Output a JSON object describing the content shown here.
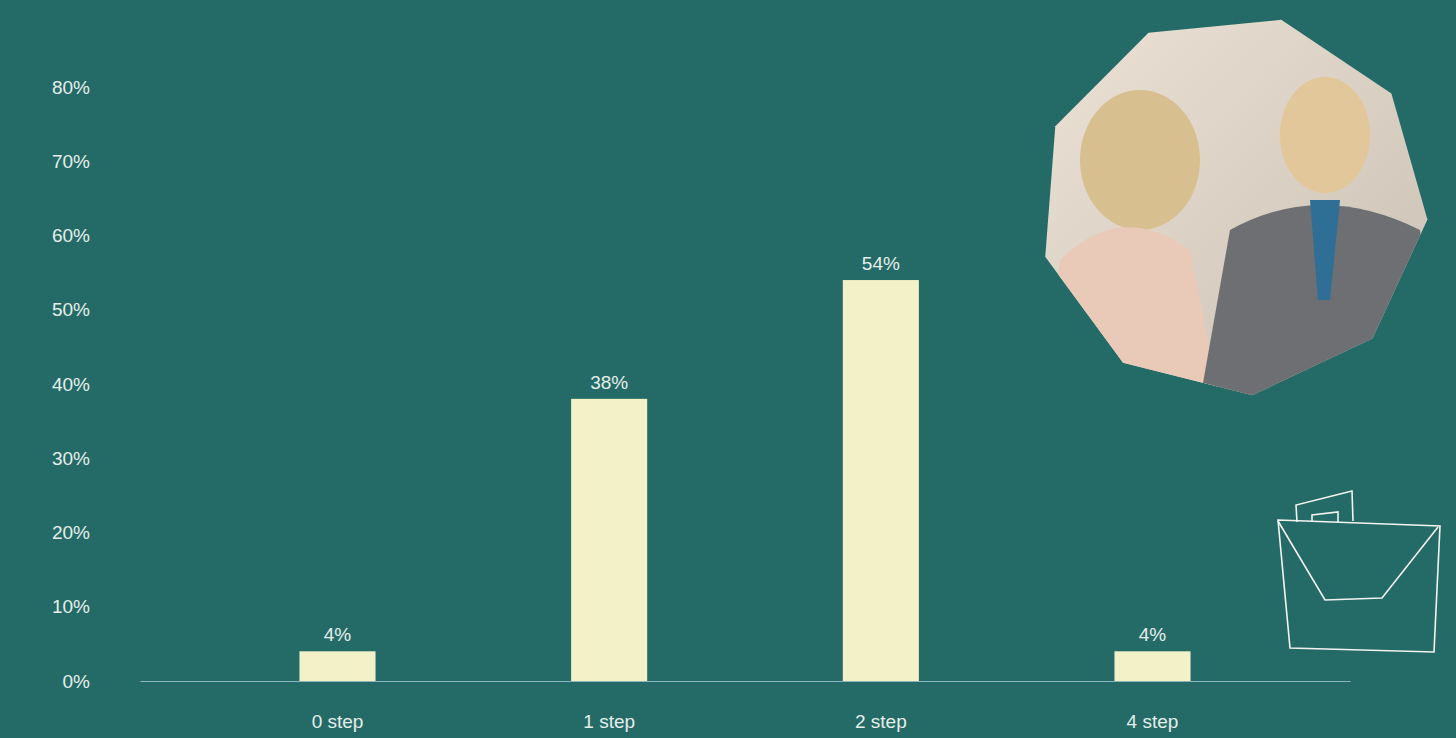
{
  "chart_data": {
    "type": "bar",
    "categories": [
      "0 step",
      "1 step",
      "2 step",
      "4 step"
    ],
    "values": [
      4,
      38,
      54,
      4
    ],
    "value_labels": [
      "4%",
      "38%",
      "54%",
      "4%"
    ],
    "color": "#f2f1c8",
    "ylim": [
      0,
      80
    ],
    "yticks": [
      {
        "value": 0,
        "label": "0%"
      },
      {
        "value": 10,
        "label": "10%"
      },
      {
        "value": 20,
        "label": "20%"
      },
      {
        "value": 30,
        "label": "30%"
      },
      {
        "value": 40,
        "label": "40%"
      },
      {
        "value": 50,
        "label": "50%"
      },
      {
        "value": 60,
        "label": "60%"
      },
      {
        "value": 70,
        "label": "70%"
      },
      {
        "value": 80,
        "label": "80%"
      }
    ],
    "data_labels": true,
    "grid": false
  }
}
